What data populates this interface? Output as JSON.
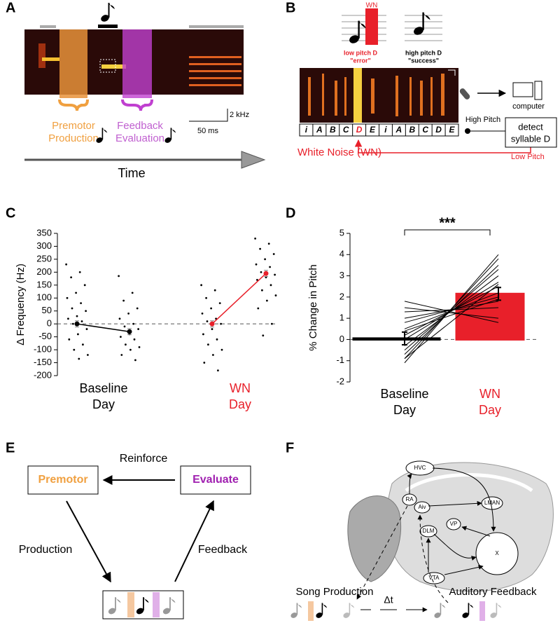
{
  "panel_labels": [
    "A",
    "B",
    "C",
    "D",
    "E",
    "F"
  ],
  "panel_a": {
    "scale_freq": "2 kHz",
    "scale_time": "50 ms",
    "premotor": [
      "Premotor",
      "Production"
    ],
    "feedback": [
      "Feedback",
      "Evaluation"
    ],
    "axis": "Time"
  },
  "panel_b": {
    "wn_tag": "WN",
    "low": [
      "low pitch D",
      "\"error\""
    ],
    "high": [
      "high pitch D",
      "\"success\""
    ],
    "syllables": [
      "i",
      "A",
      "B",
      "C",
      "D",
      "E",
      "i",
      "A",
      "B",
      "C",
      "D",
      "E"
    ],
    "white_noise": "White Noise (WN)",
    "computer": "computer",
    "high_pitch": "High Pitch",
    "detect": [
      "detect",
      "syllable D"
    ],
    "low_pitch": "Low Pitch"
  },
  "chart_data": [
    {
      "type": "scatter",
      "ylabel": "Δ Frequency (Hz)",
      "ylim": [
        -200,
        350
      ],
      "yticks": [
        -200,
        -150,
        -100,
        -50,
        0,
        50,
        100,
        150,
        200,
        250,
        300,
        350
      ],
      "hline": 0,
      "point_color": "#000000",
      "groups": [
        {
          "label": [
            "Baseline",
            "Day"
          ],
          "color": "#000000",
          "points": [
            [
              230,
              200,
              180,
              150,
              120,
              100,
              80,
              60,
              50,
              30,
              20,
              10,
              0,
              -20,
              -40,
              -60,
              -80,
              -100,
              -120,
              -135
            ],
            [
              185,
              120,
              90,
              60,
              40,
              20,
              0,
              -10,
              -20,
              -40,
              -50,
              -60,
              -80,
              -90,
              -100,
              -120,
              -140
            ]
          ],
          "means": [
            0,
            -30
          ],
          "errors": [
            12,
            12
          ]
        },
        {
          "label": [
            "WN",
            "Day"
          ],
          "color": "#e8202a",
          "points": [
            [
              150,
              130,
              100,
              80,
              60,
              40,
              20,
              10,
              0,
              -20,
              -40,
              -60,
              -80,
              -100,
              -120,
              -150,
              -180
            ],
            [
              330,
              310,
              290,
              270,
              250,
              230,
              220,
              200,
              190,
              180,
              170,
              150,
              130,
              110,
              90,
              60,
              0,
              -45
            ]
          ],
          "means": [
            0,
            195
          ],
          "errors": [
            12,
            12
          ]
        }
      ]
    },
    {
      "type": "bar",
      "ylabel": "% Change in Pitch",
      "ylim": [
        -2,
        5
      ],
      "yticks": [
        -2,
        -1,
        0,
        1,
        2,
        3,
        4,
        5
      ],
      "hline": 0,
      "categories": [
        [
          "Baseline",
          "Day"
        ],
        [
          "WN",
          "Day"
        ]
      ],
      "colors": [
        "#000000",
        "#e8202a"
      ],
      "values": [
        0.05,
        2.15
      ],
      "errors": [
        0.3,
        0.3
      ],
      "paired": [
        [
          -1.1,
          4.0
        ],
        [
          -0.9,
          3.8
        ],
        [
          -0.7,
          3.5
        ],
        [
          -0.5,
          3.3
        ],
        [
          -0.3,
          3.0
        ],
        [
          0.0,
          2.7
        ],
        [
          0.2,
          2.5
        ],
        [
          0.5,
          2.2
        ],
        [
          0.8,
          2.0
        ],
        [
          1.0,
          1.8
        ],
        [
          1.3,
          1.5
        ],
        [
          1.5,
          1.0
        ],
        [
          1.8,
          0.8
        ],
        [
          -0.9,
          2.6
        ],
        [
          0.4,
          1.9
        ]
      ],
      "significance": "***"
    }
  ],
  "panel_e": {
    "premotor": "Premotor",
    "evaluate": "Evaluate",
    "reinforce": "Reinforce",
    "production": "Production",
    "feedback": "Feedback"
  },
  "panel_f": {
    "regions": [
      "HVC",
      "RA",
      "Aiv",
      "LMAN",
      "DLM",
      "VP",
      "X",
      "VTA"
    ],
    "song_production": "Song Production",
    "auditory_feedback": "Auditory Feedback",
    "delta_t": "Δt"
  }
}
